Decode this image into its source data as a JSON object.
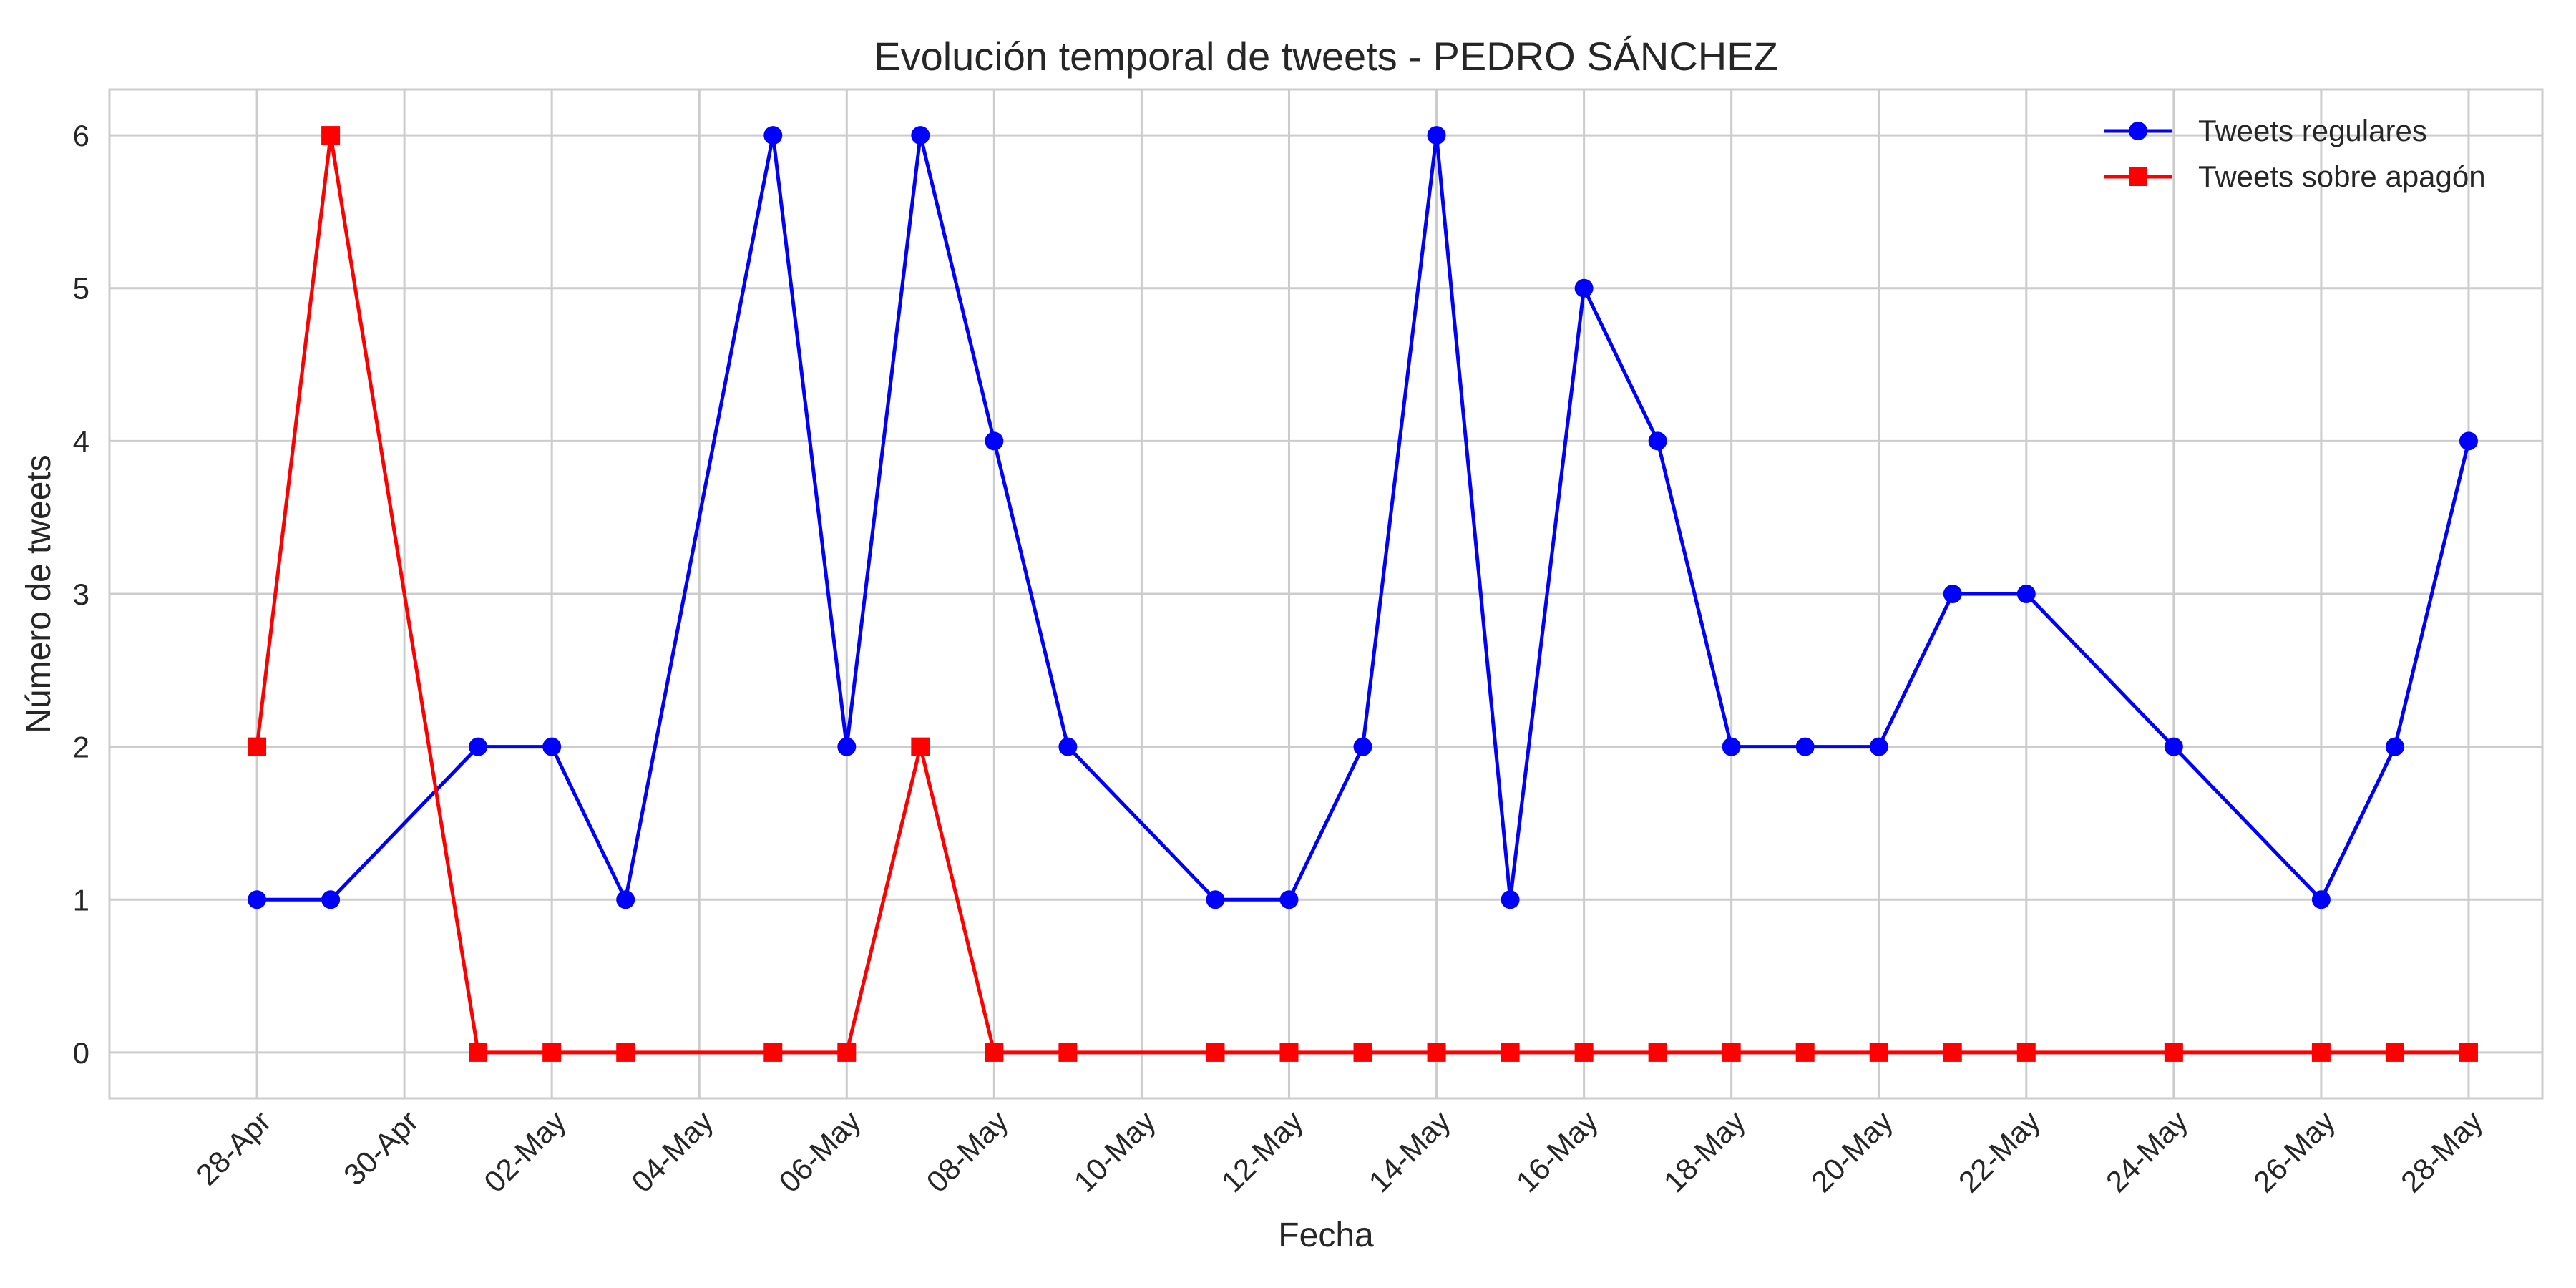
{
  "chart_data": {
    "type": "line",
    "title": "Evolución temporal de tweets - PEDRO SÁNCHEZ",
    "xlabel": "Fecha",
    "ylabel": "Número de tweets",
    "x_type": "date",
    "xlim": [
      "2025-04-26",
      "2025-05-29"
    ],
    "ylim": [
      -0.3,
      6.3
    ],
    "yticks": [
      0,
      1,
      2,
      3,
      4,
      5,
      6
    ],
    "xticks": [
      {
        "date": "2025-04-28",
        "label": "28-Apr"
      },
      {
        "date": "2025-04-30",
        "label": "30-Apr"
      },
      {
        "date": "2025-05-02",
        "label": "02-May"
      },
      {
        "date": "2025-05-04",
        "label": "04-May"
      },
      {
        "date": "2025-05-06",
        "label": "06-May"
      },
      {
        "date": "2025-05-08",
        "label": "08-May"
      },
      {
        "date": "2025-05-10",
        "label": "10-May"
      },
      {
        "date": "2025-05-12",
        "label": "12-May"
      },
      {
        "date": "2025-05-14",
        "label": "14-May"
      },
      {
        "date": "2025-05-16",
        "label": "16-May"
      },
      {
        "date": "2025-05-18",
        "label": "18-May"
      },
      {
        "date": "2025-05-20",
        "label": "20-May"
      },
      {
        "date": "2025-05-22",
        "label": "22-May"
      },
      {
        "date": "2025-05-24",
        "label": "24-May"
      },
      {
        "date": "2025-05-26",
        "label": "26-May"
      },
      {
        "date": "2025-05-28",
        "label": "28-May"
      }
    ],
    "grid": true,
    "legend_position": "top-right",
    "series": [
      {
        "name": "Tweets regulares",
        "color": "#0000ff",
        "marker": "circle",
        "x": [
          "2025-04-28",
          "2025-04-29",
          "2025-05-01",
          "2025-05-02",
          "2025-05-03",
          "2025-05-05",
          "2025-05-06",
          "2025-05-07",
          "2025-05-08",
          "2025-05-09",
          "2025-05-11",
          "2025-05-12",
          "2025-05-13",
          "2025-05-14",
          "2025-05-15",
          "2025-05-16",
          "2025-05-17",
          "2025-05-18",
          "2025-05-19",
          "2025-05-20",
          "2025-05-21",
          "2025-05-22",
          "2025-05-24",
          "2025-05-26",
          "2025-05-27",
          "2025-05-28"
        ],
        "values": [
          1,
          1,
          2,
          2,
          1,
          6,
          2,
          6,
          4,
          2,
          1,
          1,
          2,
          6,
          1,
          5,
          4,
          2,
          2,
          2,
          3,
          3,
          2,
          1,
          2,
          4
        ]
      },
      {
        "name": "Tweets sobre apagón",
        "color": "#ff0000",
        "marker": "square",
        "x": [
          "2025-04-28",
          "2025-04-29",
          "2025-05-01",
          "2025-05-02",
          "2025-05-03",
          "2025-05-05",
          "2025-05-06",
          "2025-05-07",
          "2025-05-08",
          "2025-05-09",
          "2025-05-11",
          "2025-05-12",
          "2025-05-13",
          "2025-05-14",
          "2025-05-15",
          "2025-05-16",
          "2025-05-17",
          "2025-05-18",
          "2025-05-19",
          "2025-05-20",
          "2025-05-21",
          "2025-05-22",
          "2025-05-24",
          "2025-05-26",
          "2025-05-27",
          "2025-05-28"
        ],
        "values": [
          2,
          6,
          0,
          0,
          0,
          0,
          0,
          2,
          0,
          0,
          0,
          0,
          0,
          0,
          0,
          0,
          0,
          0,
          0,
          0,
          0,
          0,
          0,
          0,
          0,
          0
        ]
      }
    ]
  }
}
